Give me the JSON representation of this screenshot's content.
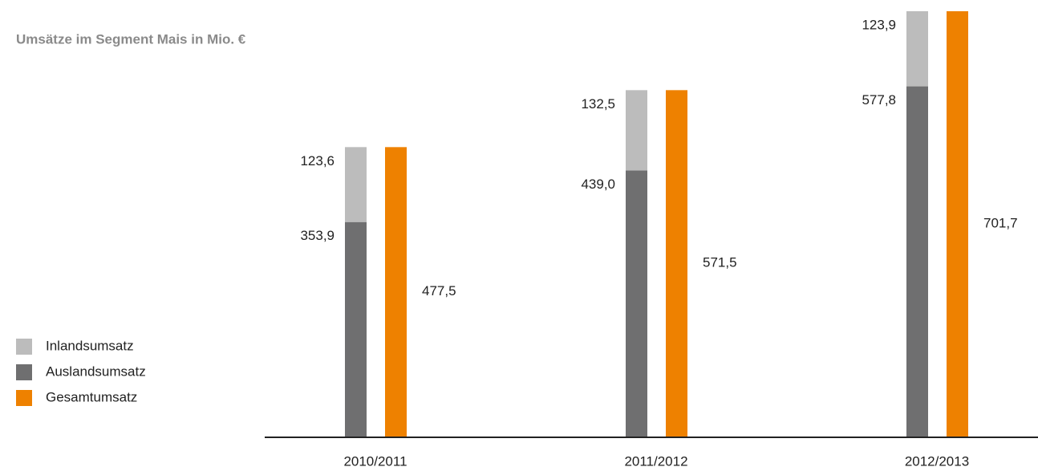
{
  "chart_data": {
    "type": "bar",
    "title": "Umsätze im Segment Mais in Mio. €",
    "categories": [
      "2010/2011",
      "2011/2012",
      "2012/2013"
    ],
    "series": [
      {
        "name": "Inlandsumsatz",
        "color": "#bcbcbc",
        "values": [
          123.6,
          132.5,
          123.9
        ],
        "value_labels": [
          "123,6",
          "132,5",
          "123,9"
        ]
      },
      {
        "name": "Auslandsumsatz",
        "color": "#6f6f70",
        "values": [
          353.9,
          439.0,
          577.8
        ],
        "value_labels": [
          "353,9",
          "439,0",
          "577,8"
        ]
      },
      {
        "name": "Gesamtumsatz",
        "color": "#ee8100",
        "values": [
          477.5,
          571.5,
          701.7
        ],
        "value_labels": [
          "477,5",
          "571,5",
          "701,7"
        ]
      }
    ]
  }
}
